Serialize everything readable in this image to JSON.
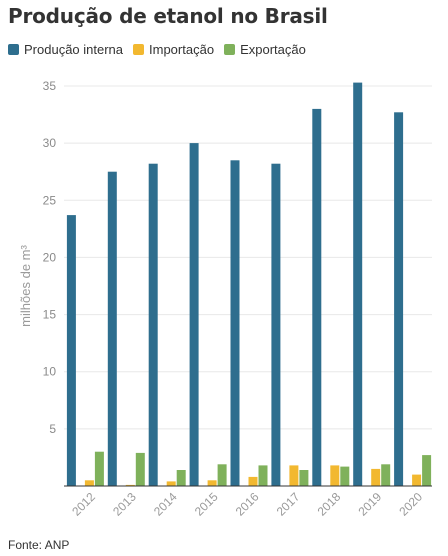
{
  "header": {
    "title": "Produção de etanol no Brasil"
  },
  "footer": {
    "source": "Fonte: ANP"
  },
  "colors": {
    "series": [
      "#2e6e8e",
      "#f2b830",
      "#7fb15b"
    ],
    "grid": "#e8e8e8",
    "axis": "#999999",
    "tick": "#aaaaaa"
  },
  "chart_data": {
    "type": "bar",
    "title": "Produção de etanol no Brasil",
    "xlabel": "",
    "ylabel": "milhões de m³",
    "ylim": [
      0,
      35
    ],
    "yticks": [
      5,
      10,
      15,
      20,
      25,
      30,
      35
    ],
    "grid": true,
    "legend_position": "top-left",
    "categories": [
      "2012",
      "2013",
      "2014",
      "2015",
      "2016",
      "2017",
      "2018",
      "2019",
      "2020"
    ],
    "series": [
      {
        "name": "Produção interna",
        "color": "#2e6e8e",
        "values": [
          23.7,
          27.5,
          28.2,
          30.0,
          28.5,
          28.2,
          33.0,
          35.3,
          32.7
        ]
      },
      {
        "name": "Importação",
        "color": "#f2b830",
        "values": [
          0.5,
          0.1,
          0.4,
          0.5,
          0.8,
          1.8,
          1.8,
          1.5,
          1.0
        ]
      },
      {
        "name": "Exportação",
        "color": "#7fb15b",
        "values": [
          3.0,
          2.9,
          1.4,
          1.9,
          1.8,
          1.4,
          1.7,
          1.9,
          2.7
        ]
      }
    ]
  }
}
